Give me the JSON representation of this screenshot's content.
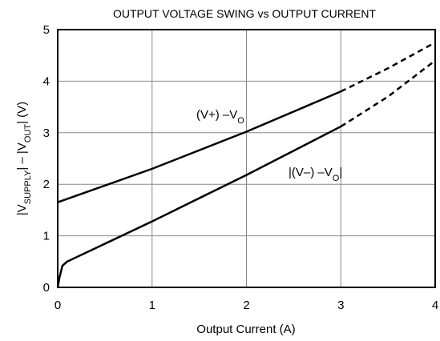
{
  "chart_data": {
    "type": "line",
    "title": "OUTPUT VOLTAGE SWING vs OUTPUT CURRENT",
    "xlabel": "Output Current (A)",
    "ylabel_parts": [
      {
        "text": "|V"
      },
      {
        "text": "SUPPLY",
        "sub": true
      },
      {
        "text": "| – |V"
      },
      {
        "text": "OUT",
        "sub": true
      },
      {
        "text": "| (V)"
      }
    ],
    "xlim": [
      0,
      4
    ],
    "xticks": [
      0,
      1,
      2,
      3,
      4
    ],
    "ylim": [
      0,
      5
    ],
    "yticks": [
      0,
      1,
      2,
      3,
      4,
      5
    ],
    "grid": true,
    "series": [
      {
        "color": "#000000",
        "dashed": false,
        "x": [
          0,
          1,
          2,
          3
        ],
        "values": [
          1.65,
          2.3,
          3.02,
          3.8
        ]
      },
      {
        "color": "#000000",
        "dashed": true,
        "x": [
          3,
          3.5,
          4
        ],
        "values": [
          3.8,
          4.25,
          4.75
        ]
      },
      {
        "color": "#000000",
        "dashed": false,
        "x": [
          0,
          0.02,
          0.05,
          0.1,
          1,
          2,
          3
        ],
        "values": [
          0,
          0.2,
          0.42,
          0.5,
          1.28,
          2.18,
          3.12
        ]
      },
      {
        "color": "#000000",
        "dashed": true,
        "x": [
          3,
          3.5,
          4
        ],
        "values": [
          3.12,
          3.7,
          4.4
        ]
      }
    ],
    "annotations": [
      {
        "parts": [
          {
            "text": "(V+) –V"
          },
          {
            "text": "O",
            "sub": true
          }
        ]
      },
      {
        "parts": [
          {
            "text": "|(V–) –V"
          },
          {
            "text": "O",
            "sub": true
          },
          {
            "text": "|"
          }
        ]
      }
    ]
  }
}
